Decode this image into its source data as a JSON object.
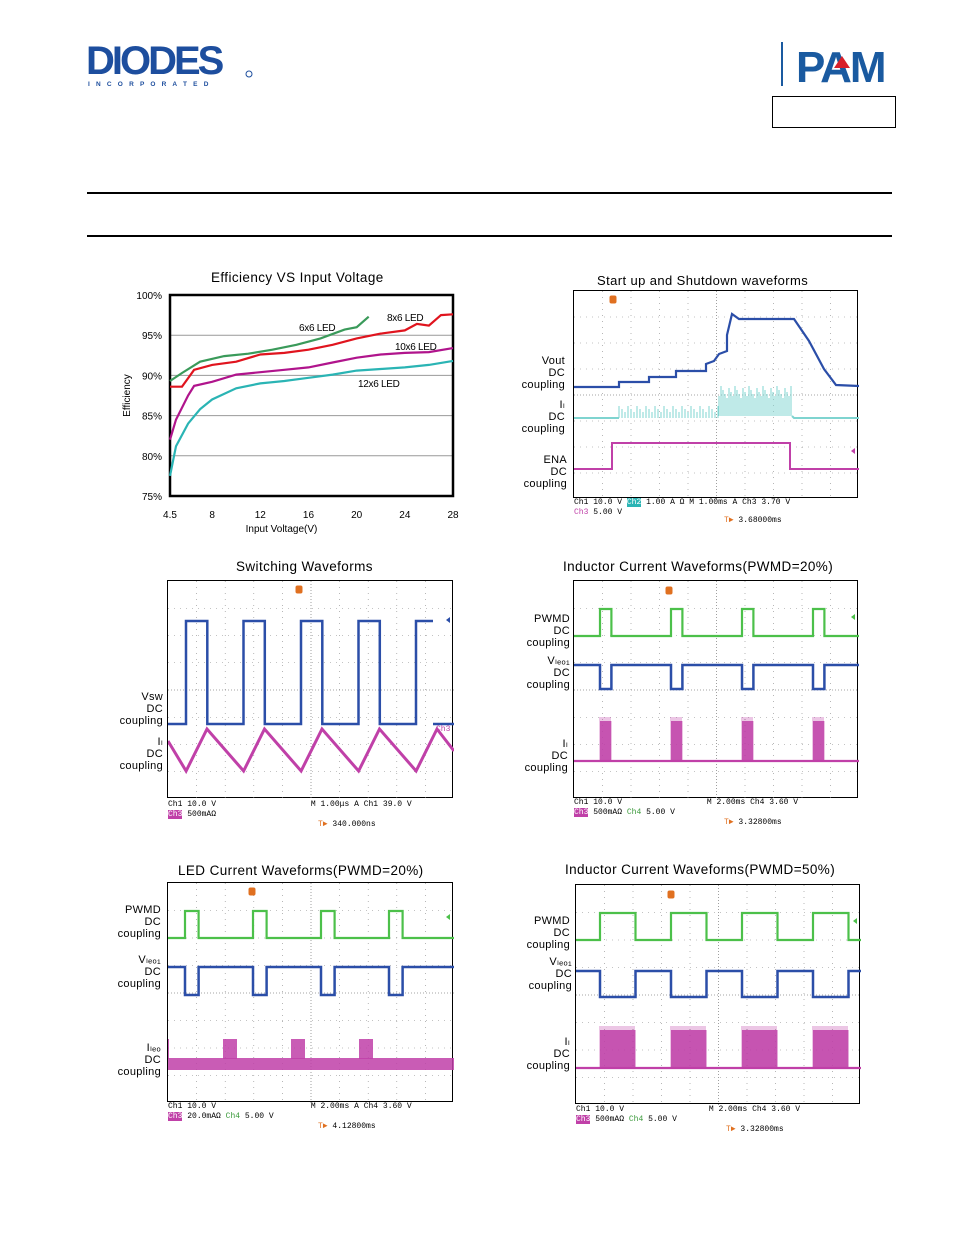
{
  "header": {
    "company": "DIODES",
    "company_sub": "I N C O R P O R A T E D",
    "brand": "PAM"
  },
  "efficiency_chart": {
    "title": "Efficiency VS Input Voltage",
    "ylabel": "Efficiency",
    "xlabel": "Input Voltage(V)",
    "yticks": [
      "100%",
      "95%",
      "90%",
      "85%",
      "80%",
      "75%"
    ],
    "xticks": [
      "4.5",
      "8",
      "12",
      "16",
      "20",
      "24",
      "28"
    ],
    "series_labels": [
      "6x6 LED",
      "8x6 LED",
      "10x6 LED",
      "12x6 LED"
    ]
  },
  "chart_data": {
    "type": "line",
    "title": "Efficiency VS Input Voltage",
    "xlabel": "Input Voltage(V)",
    "ylabel": "Efficiency",
    "xlim": [
      4.5,
      28
    ],
    "ylim": [
      75,
      100
    ],
    "grid": true,
    "series": [
      {
        "name": "6x6 LED",
        "color": "#3a9a5a",
        "x": [
          4.5,
          5.5,
          7,
          9,
          11,
          13,
          15,
          17,
          19,
          20,
          21
        ],
        "y": [
          89.3,
          90.3,
          91.7,
          92.4,
          92.7,
          93.2,
          93.8,
          94.6,
          95.7,
          96.0,
          97.3
        ]
      },
      {
        "name": "8x6 LED",
        "color": "#e0141e",
        "x": [
          4.5,
          5.5,
          6.5,
          8,
          10,
          12,
          14,
          16,
          18,
          20,
          22,
          24,
          25,
          26,
          27,
          28
        ],
        "y": [
          88.6,
          88.6,
          90.7,
          91.3,
          91.7,
          92.6,
          92.8,
          93.2,
          93.8,
          94.6,
          95.2,
          95.6,
          96.4,
          96.2,
          97.5,
          97.6
        ]
      },
      {
        "name": "10x6 LED",
        "color": "#b0148c",
        "x": [
          4.5,
          5,
          6,
          6.5,
          8,
          10,
          12,
          14,
          16,
          18,
          20,
          22,
          24,
          26,
          28
        ],
        "y": [
          82.0,
          84.5,
          87.5,
          88.7,
          89.2,
          90.1,
          90.4,
          90.7,
          91.0,
          91.6,
          92.2,
          92.6,
          92.8,
          92.9,
          93.4
        ]
      },
      {
        "name": "12x6 LED",
        "color": "#2ab4b4",
        "x": [
          4.5,
          5,
          6,
          7,
          8,
          10,
          12,
          14,
          16,
          18,
          20,
          22,
          24,
          26,
          28
        ],
        "y": [
          77.5,
          81.2,
          84.0,
          85.8,
          87.0,
          88.4,
          89.0,
          89.3,
          89.7,
          90.1,
          90.6,
          90.8,
          91.0,
          91.3,
          91.8
        ]
      }
    ]
  },
  "scopes": {
    "startup": {
      "title": "Start up and Shutdown waveforms",
      "labels": [
        [
          "Vout",
          "DC",
          "coupling"
        ],
        [
          "Iₗ",
          "DC",
          "coupling"
        ],
        [
          "ENA",
          "DC",
          "coupling"
        ]
      ],
      "status": {
        "ch1": "Ch1",
        "v1": "10.0 V",
        "ch2": "Ch2",
        "v2": "1.00 A Ω",
        "m": "M 1.00ms",
        "a": "A",
        "trig_ch": "Ch3",
        "trig_v": "3.70 V",
        "ch3": "Ch3",
        "v3": "5.00 V",
        "delay": "3.68000ms"
      }
    },
    "switching": {
      "title": "Switching Waveforms",
      "labels": [
        [
          "Vsw",
          "DC",
          "coupling"
        ],
        [
          "Iₗ",
          "DC",
          "coupling"
        ]
      ],
      "ch3_marker": "Ch3",
      "status": {
        "ch1": "Ch1",
        "v1": "10.0 V",
        "ch3": "Ch3",
        "v3": "500mAΩ",
        "m": "M 1.00μs",
        "a": "A",
        "trig_ch": "Ch1",
        "trig_v": "39.0 V",
        "delay": "340.000ns"
      }
    },
    "inductor20": {
      "title": "Inductor Current Waveforms(PWMD=20%)",
      "labels": [
        [
          "PWMD",
          "DC",
          "coupling"
        ],
        [
          "Vₗₑₒ₁",
          "DC",
          "coupling"
        ],
        [
          "Iₗ",
          "DC",
          "coupling"
        ]
      ],
      "status": {
        "ch1": "Ch1",
        "v1": "10.0 V",
        "ch3": "Ch3",
        "v3": "500mAΩ",
        "ch4": "Ch4",
        "v4": "5.00 V",
        "m": "M 2.00ms",
        "trig_ch": "Ch4",
        "trig_v": "3.60 V",
        "delay": "3.32800ms"
      }
    },
    "led20": {
      "title": "LED Current Waveforms(PWMD=20%)",
      "labels": [
        [
          "PWMD",
          "DC",
          "coupling"
        ],
        [
          "Vₗₑₒ₁",
          "DC",
          "coupling"
        ],
        [
          "Iₗₑₒ",
          "DC",
          "coupling"
        ]
      ],
      "status": {
        "ch1": "Ch1",
        "v1": "10.0 V",
        "ch3": "Ch3",
        "v3": "20.0mAΩ",
        "ch4": "Ch4",
        "v4": "5.00 V",
        "m": "M 2.00ms",
        "a": "A",
        "trig_ch": "Ch4",
        "trig_v": "3.60 V",
        "delay": "4.12800ms"
      }
    },
    "inductor50": {
      "title": "Inductor Current Waveforms(PWMD=50%)",
      "labels": [
        [
          "PWMD",
          "DC",
          "coupling"
        ],
        [
          "Vₗₑₒ₁",
          "DC",
          "coupling"
        ],
        [
          "Iₗ",
          "DC",
          "coupling"
        ]
      ],
      "status": {
        "ch1": "Ch1",
        "v1": "10.0 V",
        "ch3": "Ch3",
        "v3": "500mAΩ",
        "ch4": "Ch4",
        "v4": "5.00 V",
        "m": "M 2.00ms",
        "trig_ch": "Ch4",
        "trig_v": "3.60 V",
        "delay": "3.32800ms"
      }
    }
  },
  "colors": {
    "logo_blue": "#1d4e9e",
    "pam_blue": "#1a5aa0",
    "pam_red": "#d8202a",
    "green": "#4cc04a",
    "blue": "#2b4ea8",
    "magenta": "#c040a8",
    "teal": "#7fd4d0",
    "grid": "#888888"
  }
}
